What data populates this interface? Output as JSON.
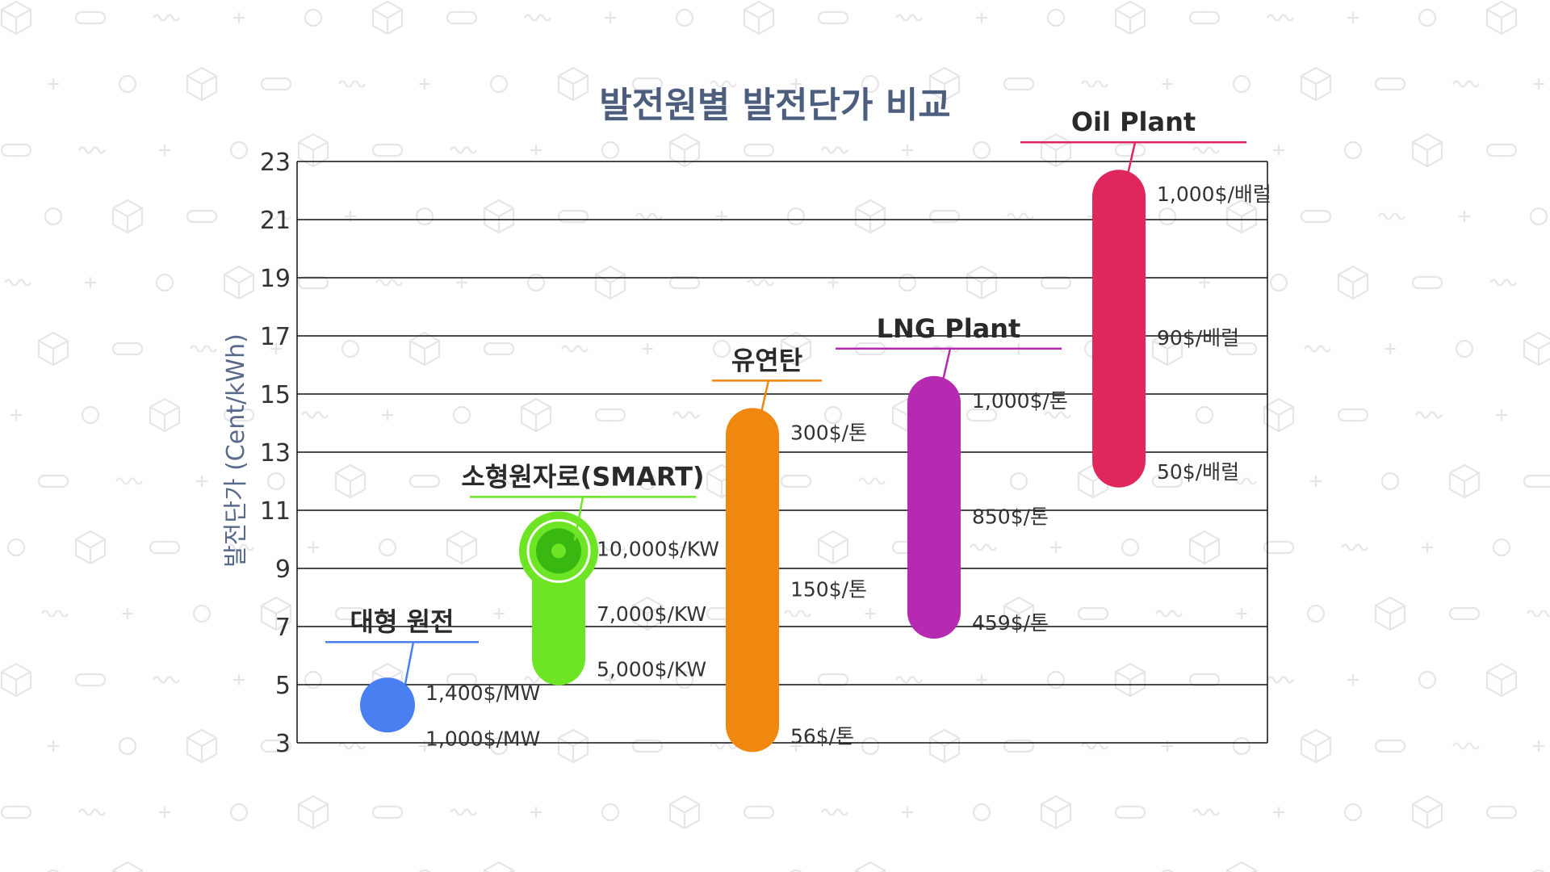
{
  "chart_data": {
    "type": "range-bar",
    "title": "발전원별 발전단가 비교",
    "ylabel": "발전단가 (Cent/kWh)",
    "ylim": [
      3,
      23
    ],
    "yticks": [
      3,
      5,
      7,
      9,
      11,
      13,
      15,
      17,
      19,
      21,
      23
    ],
    "grid": true,
    "series": [
      {
        "name": "대형 원전",
        "color": "#4a7ff2",
        "shape": "circle",
        "low": 3.9,
        "high": 4.7,
        "labels": [
          "1,400$/MW",
          "1,000$/MW"
        ]
      },
      {
        "name": "소형원자로(SMART)",
        "color": "#6ee524",
        "shape": "pill-with-target",
        "low": 5.9,
        "high": 9.6,
        "labels": [
          "10,000$/KW",
          "7,000$/KW",
          "5,000$/KW"
        ]
      },
      {
        "name": "유연탄",
        "color": "#f0870f",
        "shape": "pill",
        "low": 3.6,
        "high": 13.6,
        "labels": [
          "300$/톤",
          "150$/톤",
          "56$/톤"
        ]
      },
      {
        "name": "LNG Plant",
        "color": "#b52ab0",
        "shape": "pill",
        "low": 7.5,
        "high": 14.7,
        "labels": [
          "1,000$/톤",
          "850$/톤",
          "459$/톤"
        ]
      },
      {
        "name": "Oil Plant",
        "color": "#e0275d",
        "shape": "pill",
        "low": 12.7,
        "high": 21.8,
        "labels": [
          "1,000$/배럴",
          "90$/배럴",
          "50$/배럴"
        ]
      }
    ]
  },
  "colors": {
    "title": "#4d5d7e",
    "axis_label": "#5a6a8a",
    "tick": "#333333",
    "grid": "#111111",
    "value_label": "#333333",
    "pattern": "#e6e6ea"
  }
}
